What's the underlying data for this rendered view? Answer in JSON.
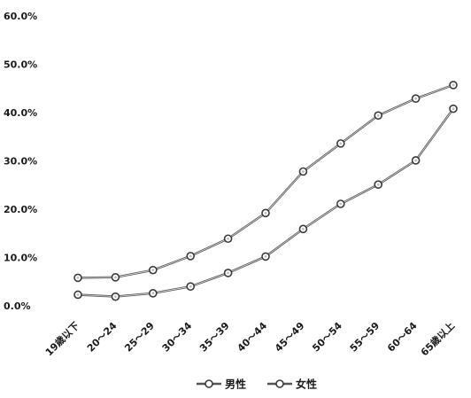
{
  "chart_data": {
    "type": "line",
    "categories": [
      "19歳以下",
      "20～24",
      "25～29",
      "30～34",
      "35～39",
      "40～44",
      "45～49",
      "50～54",
      "55～59",
      "60～64",
      "65歳以上"
    ],
    "series": [
      {
        "name": "男性",
        "values": [
          5.8,
          5.9,
          7.4,
          10.3,
          13.9,
          19.2,
          27.8,
          33.6,
          39.4,
          42.9,
          45.7
        ]
      },
      {
        "name": "女性",
        "values": [
          2.3,
          1.9,
          2.6,
          4.0,
          6.8,
          10.2,
          15.9,
          21.1,
          25.1,
          30.1,
          40.8
        ]
      }
    ],
    "ylim": [
      0,
      60
    ],
    "yticks": [
      "0.0%",
      "10.0%",
      "20.0%",
      "30.0%",
      "40.0%",
      "50.0%",
      "60.0%"
    ],
    "title": "",
    "xlabel": "",
    "ylabel": "",
    "grid": false,
    "legend_position": "bottom-center",
    "colors": {
      "line": "#555555",
      "marker_edge": "#3a3a3a",
      "marker_fill": "#ffffff"
    }
  }
}
